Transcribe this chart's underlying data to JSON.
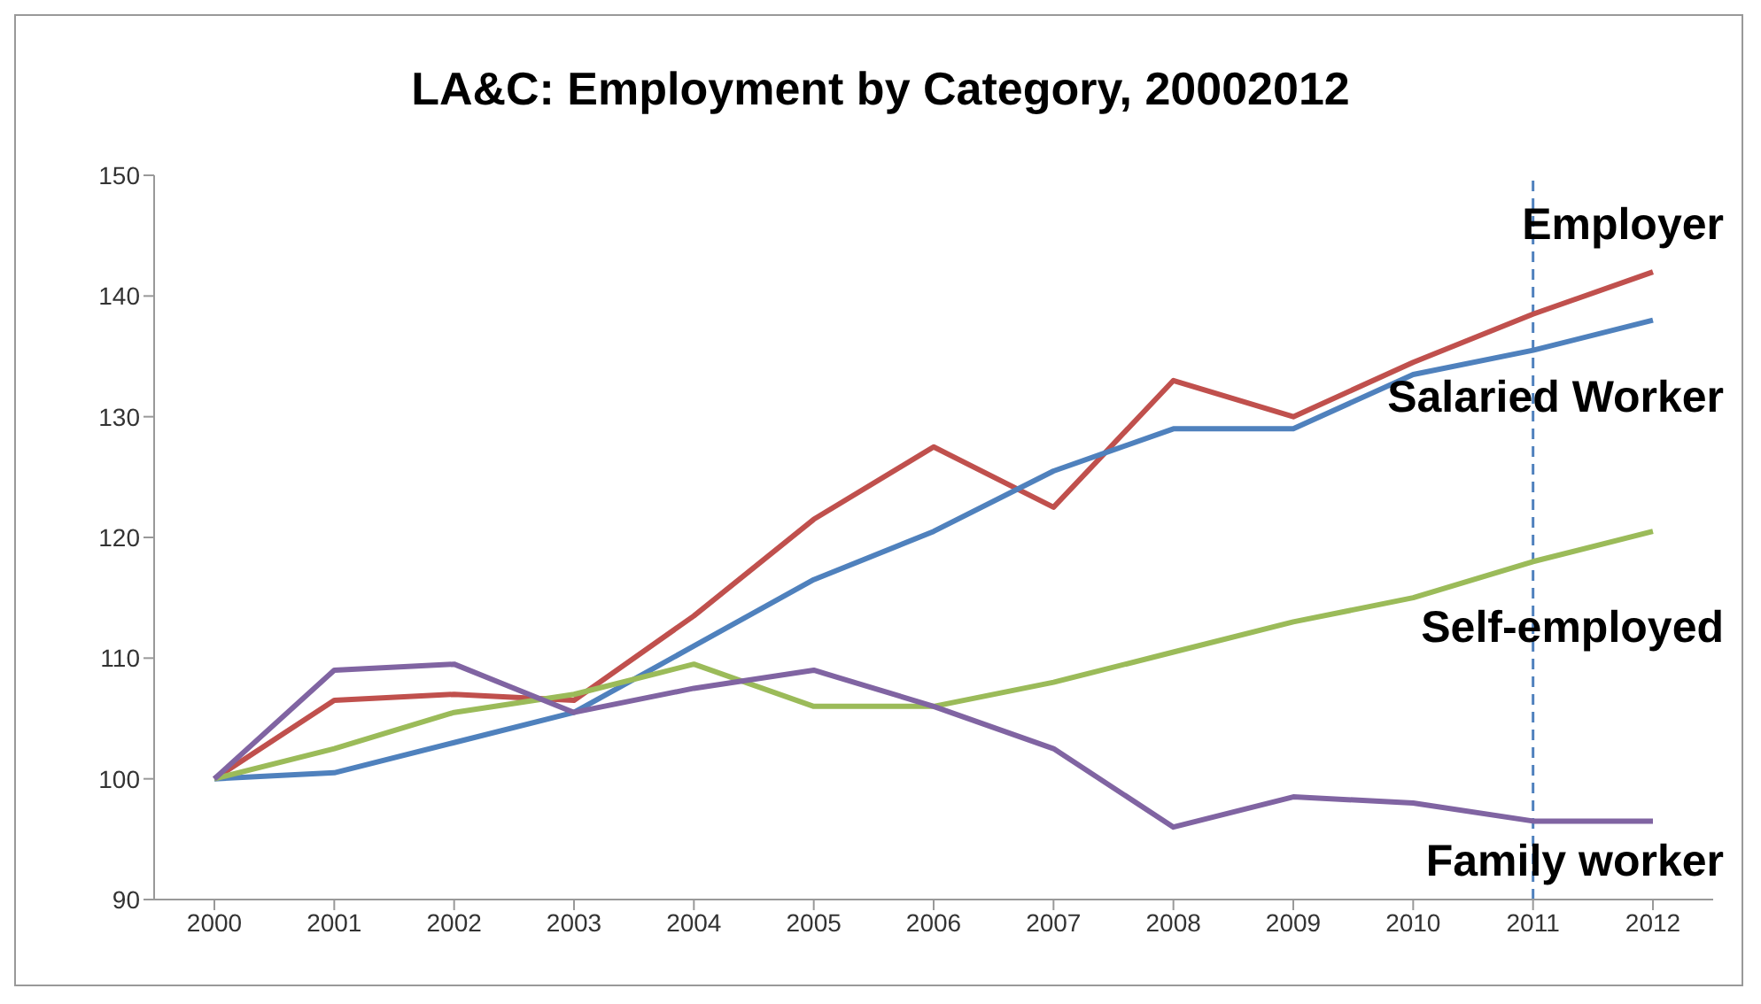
{
  "chart_data": {
    "type": "line",
    "title": "LA&C: Employment by Category, 20002012",
    "categories": [
      "2000",
      "2001",
      "2002",
      "2003",
      "2004",
      "2005",
      "2006",
      "2007",
      "2008",
      "2009",
      "2010",
      "2011",
      "2012"
    ],
    "series": [
      {
        "name": "Employer",
        "color": "#c0504d",
        "values": [
          100,
          106.5,
          107,
          106.5,
          113.5,
          121.5,
          127.5,
          122.5,
          133,
          130,
          134.5,
          138.5,
          142
        ]
      },
      {
        "name": "Salaried Worker",
        "color": "#4f81bd",
        "values": [
          100,
          100.5,
          103,
          105.5,
          111,
          116.5,
          120.5,
          125.5,
          129,
          129,
          133.5,
          135.5,
          138
        ]
      },
      {
        "name": "Self-employed",
        "color": "#9bbb59",
        "values": [
          100,
          102.5,
          105.5,
          107,
          109.5,
          106,
          106,
          108,
          110.5,
          113,
          115,
          118,
          120.5
        ]
      },
      {
        "name": "Family worker",
        "color": "#8064a2",
        "values": [
          100,
          109,
          109.5,
          105.5,
          107.5,
          109,
          106,
          102.5,
          96,
          98.5,
          98,
          96.5,
          96.5
        ]
      }
    ],
    "ylim": [
      90,
      150
    ],
    "yticks": [
      90,
      100,
      110,
      120,
      130,
      140,
      150
    ],
    "ref_lines": [
      {
        "axis": "x",
        "value": "2011",
        "color": "#4f81bd",
        "line_style": "dashed"
      }
    ],
    "marker": "none",
    "line_style": "solid"
  }
}
